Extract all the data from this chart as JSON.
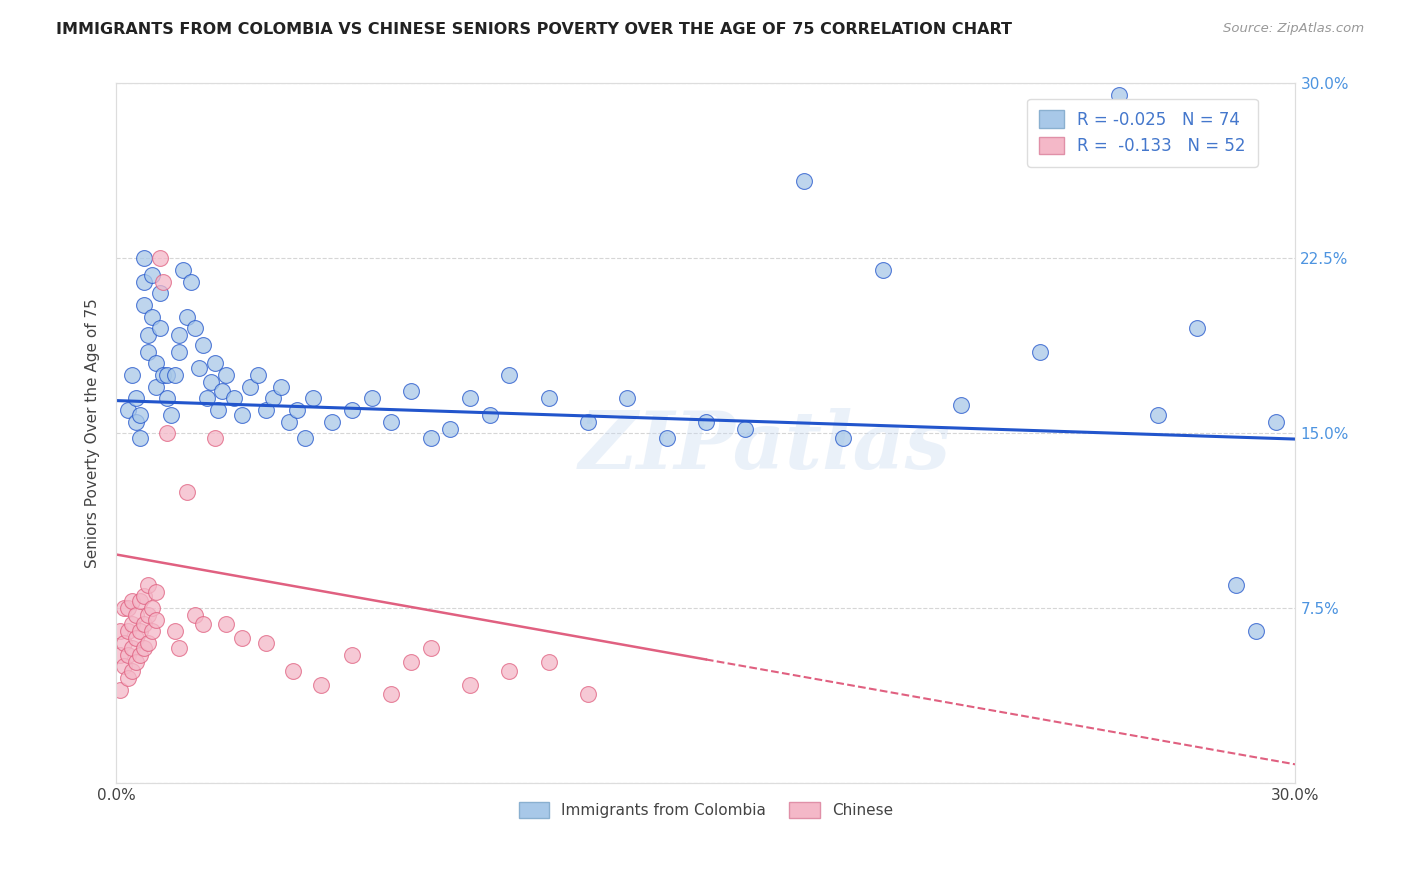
{
  "title": "IMMIGRANTS FROM COLOMBIA VS CHINESE SENIORS POVERTY OVER THE AGE OF 75 CORRELATION CHART",
  "source": "Source: ZipAtlas.com",
  "ylabel": "Seniors Poverty Over the Age of 75",
  "xlim": [
    0.0,
    0.3
  ],
  "ylim": [
    0.0,
    0.3
  ],
  "color_blue": "#a8c8e8",
  "color_pink": "#f4b8c8",
  "line_blue": "#2255cc",
  "line_pink": "#e06080",
  "watermark": "ZIPatlas",
  "background_color": "#ffffff",
  "grid_color": "#cccccc",
  "blue_r": -0.025,
  "blue_n": 74,
  "pink_r": -0.133,
  "pink_n": 52,
  "blue_points_x": [
    0.003,
    0.004,
    0.005,
    0.005,
    0.006,
    0.006,
    0.007,
    0.007,
    0.007,
    0.008,
    0.008,
    0.009,
    0.009,
    0.01,
    0.01,
    0.011,
    0.011,
    0.012,
    0.013,
    0.013,
    0.014,
    0.015,
    0.016,
    0.016,
    0.017,
    0.018,
    0.019,
    0.02,
    0.021,
    0.022,
    0.023,
    0.024,
    0.025,
    0.026,
    0.027,
    0.028,
    0.03,
    0.032,
    0.034,
    0.036,
    0.038,
    0.04,
    0.042,
    0.044,
    0.046,
    0.048,
    0.05,
    0.055,
    0.06,
    0.065,
    0.07,
    0.075,
    0.08,
    0.085,
    0.09,
    0.095,
    0.1,
    0.11,
    0.12,
    0.13,
    0.14,
    0.15,
    0.16,
    0.175,
    0.185,
    0.195,
    0.215,
    0.235,
    0.255,
    0.265,
    0.275,
    0.285,
    0.29,
    0.295
  ],
  "blue_points_y": [
    0.16,
    0.175,
    0.155,
    0.165,
    0.148,
    0.158,
    0.205,
    0.215,
    0.225,
    0.192,
    0.185,
    0.2,
    0.218,
    0.17,
    0.18,
    0.195,
    0.21,
    0.175,
    0.165,
    0.175,
    0.158,
    0.175,
    0.192,
    0.185,
    0.22,
    0.2,
    0.215,
    0.195,
    0.178,
    0.188,
    0.165,
    0.172,
    0.18,
    0.16,
    0.168,
    0.175,
    0.165,
    0.158,
    0.17,
    0.175,
    0.16,
    0.165,
    0.17,
    0.155,
    0.16,
    0.148,
    0.165,
    0.155,
    0.16,
    0.165,
    0.155,
    0.168,
    0.148,
    0.152,
    0.165,
    0.158,
    0.175,
    0.165,
    0.155,
    0.165,
    0.148,
    0.155,
    0.152,
    0.258,
    0.148,
    0.22,
    0.162,
    0.185,
    0.295,
    0.158,
    0.195,
    0.085,
    0.065,
    0.155
  ],
  "pink_points_x": [
    0.001,
    0.001,
    0.001,
    0.002,
    0.002,
    0.002,
    0.003,
    0.003,
    0.003,
    0.003,
    0.004,
    0.004,
    0.004,
    0.004,
    0.005,
    0.005,
    0.005,
    0.006,
    0.006,
    0.006,
    0.007,
    0.007,
    0.007,
    0.008,
    0.008,
    0.008,
    0.009,
    0.009,
    0.01,
    0.01,
    0.011,
    0.012,
    0.013,
    0.015,
    0.016,
    0.018,
    0.02,
    0.022,
    0.025,
    0.028,
    0.032,
    0.038,
    0.045,
    0.052,
    0.06,
    0.07,
    0.075,
    0.08,
    0.09,
    0.1,
    0.11,
    0.12
  ],
  "pink_points_y": [
    0.04,
    0.055,
    0.065,
    0.05,
    0.06,
    0.075,
    0.045,
    0.055,
    0.065,
    0.075,
    0.048,
    0.058,
    0.068,
    0.078,
    0.052,
    0.062,
    0.072,
    0.055,
    0.065,
    0.078,
    0.058,
    0.068,
    0.08,
    0.06,
    0.072,
    0.085,
    0.065,
    0.075,
    0.07,
    0.082,
    0.225,
    0.215,
    0.15,
    0.065,
    0.058,
    0.125,
    0.072,
    0.068,
    0.148,
    0.068,
    0.062,
    0.06,
    0.048,
    0.042,
    0.055,
    0.038,
    0.052,
    0.058,
    0.042,
    0.048,
    0.052,
    0.038
  ],
  "blue_line_intercept": 0.164,
  "blue_line_slope": -0.055,
  "pink_line_start_x": 0.0,
  "pink_line_start_y": 0.098,
  "pink_line_solid_end_x": 0.15,
  "pink_line_dashed_end_x": 0.3
}
